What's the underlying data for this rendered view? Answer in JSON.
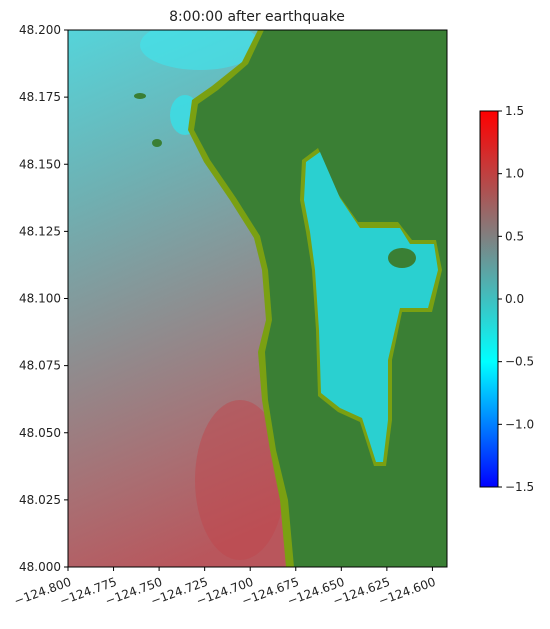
{
  "chart_data": {
    "type": "heatmap",
    "title": "8:00:00 after earthquake",
    "xlim": [
      -124.8,
      -124.592
    ],
    "xticks": [
      {
        "value": -124.8,
        "label": "−124.800"
      },
      {
        "value": -124.775,
        "label": "−124.775"
      },
      {
        "value": -124.75,
        "label": "−124.750"
      },
      {
        "value": -124.725,
        "label": "−124.725"
      },
      {
        "value": -124.7,
        "label": "−124.700"
      },
      {
        "value": -124.675,
        "label": "−124.675"
      },
      {
        "value": -124.65,
        "label": "−124.650"
      },
      {
        "value": -124.625,
        "label": "−124.625"
      },
      {
        "value": -124.6,
        "label": "−124.600"
      }
    ],
    "ylim": [
      48.0,
      48.2
    ],
    "yticks": [
      {
        "value": 48.0,
        "label": "48.000"
      },
      {
        "value": 48.025,
        "label": "48.025"
      },
      {
        "value": 48.05,
        "label": "48.050"
      },
      {
        "value": 48.075,
        "label": "48.075"
      },
      {
        "value": 48.1,
        "label": "48.100"
      },
      {
        "value": 48.125,
        "label": "48.125"
      },
      {
        "value": 48.15,
        "label": "48.150"
      },
      {
        "value": 48.175,
        "label": "48.175"
      },
      {
        "value": 48.2,
        "label": "48.200"
      }
    ],
    "colorbar": {
      "lim": [
        -1.5,
        1.5
      ],
      "colors": [
        "#0000ff",
        "#00ffff",
        "#808080",
        "#ff0000"
      ],
      "ticks": [
        {
          "value": -1.5,
          "label": "−1.5"
        },
        {
          "value": -1.0,
          "label": "−1.0"
        },
        {
          "value": -0.5,
          "label": "−0.5"
        },
        {
          "value": 0.0,
          "label": "0.0"
        },
        {
          "value": 0.5,
          "label": "0.5"
        },
        {
          "value": 1.0,
          "label": "1.0"
        },
        {
          "value": 1.5,
          "label": "1.5"
        }
      ]
    }
  }
}
